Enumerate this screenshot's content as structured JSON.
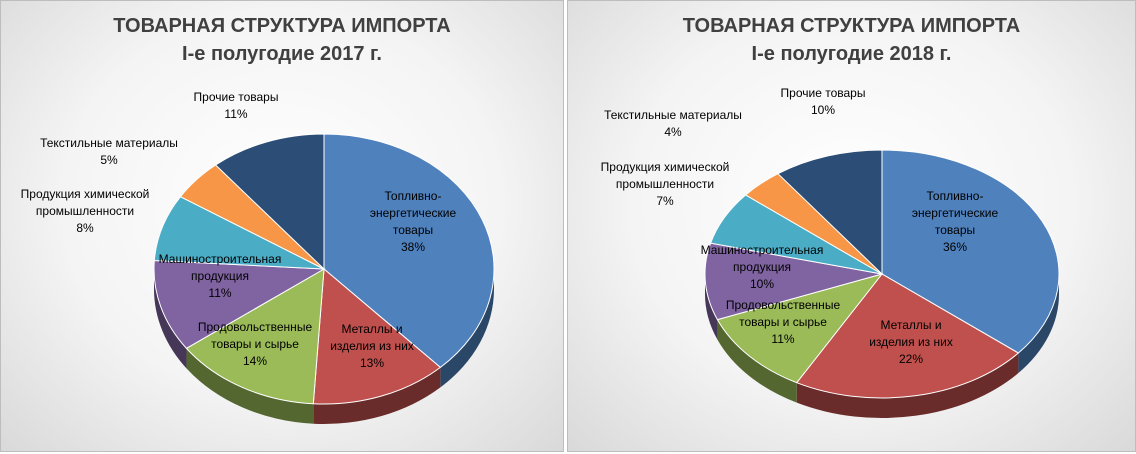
{
  "chart_data": [
    {
      "type": "pie",
      "title": "ТОВАРНАЯ СТРУКТУРА ИМПОРТА",
      "subtitle": "I-е полугодие 2017 г.",
      "categories": [
        "Топливно-энергетические товары",
        "Металлы и изделия из них",
        "Продовольственные товары и сырье",
        "Машиностроительная продукция",
        "Продукция химической промышленности",
        "Текстильные материалы",
        "Прочие товары"
      ],
      "values": [
        38,
        13,
        14,
        11,
        8,
        5,
        11
      ],
      "labels": [
        {
          "lines": [
            "Топливно-",
            "энергетические",
            "товары",
            "38%"
          ]
        },
        {
          "lines": [
            "Металлы и",
            "изделия из них",
            "13%"
          ]
        },
        {
          "lines": [
            "Продовольственные",
            "товары и сырье",
            "14%"
          ]
        },
        {
          "lines": [
            "Машиностроительная",
            "продукция",
            "11%"
          ]
        },
        {
          "lines": [
            "Продукция химической",
            "промышленности",
            "8%"
          ]
        },
        {
          "lines": [
            "Текстильные материалы",
            "5%"
          ]
        },
        {
          "lines": [
            "Прочие товары",
            "11%"
          ]
        }
      ],
      "colors": [
        "#4f81bd",
        "#c0504d",
        "#9bbb59",
        "#8064a2",
        "#4bacc6",
        "#f79646",
        "#2c4d75"
      ]
    },
    {
      "type": "pie",
      "title": "ТОВАРНАЯ СТРУКТУРА ИМПОРТА",
      "subtitle": "I-е полугодие 2018 г.",
      "categories": [
        "Топливно-энергетические товары",
        "Металлы и изделия из них",
        "Продовольственные товары и сырье",
        "Машиностроительная продукция",
        "Продукция химической промышленности",
        "Текстильные материалы",
        "Прочие товары"
      ],
      "values": [
        36,
        22,
        11,
        10,
        7,
        4,
        10
      ],
      "labels": [
        {
          "lines": [
            "Топливно-",
            "энергетические",
            "товары",
            "36%"
          ]
        },
        {
          "lines": [
            "Металлы и",
            "изделия из них",
            "22%"
          ]
        },
        {
          "lines": [
            "Продовольственные",
            "товары и сырье",
            "11%"
          ]
        },
        {
          "lines": [
            "Машиностроительная",
            "продукция",
            "10%"
          ]
        },
        {
          "lines": [
            "Продукция химической",
            "промышленности",
            "7%"
          ]
        },
        {
          "lines": [
            "Текстильные материалы",
            "4%"
          ]
        },
        {
          "lines": [
            "Прочие товары",
            "10%"
          ]
        }
      ],
      "colors": [
        "#4f81bd",
        "#c0504d",
        "#9bbb59",
        "#8064a2",
        "#4bacc6",
        "#f79646",
        "#2c4d75"
      ]
    }
  ]
}
